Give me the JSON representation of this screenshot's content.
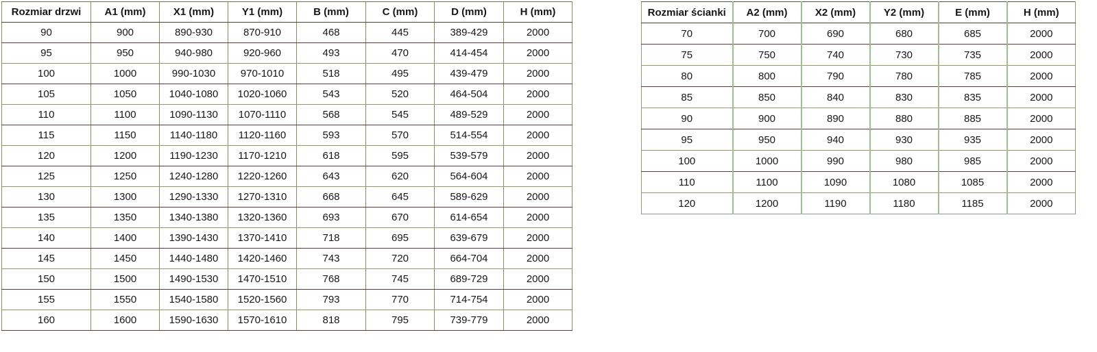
{
  "door_table": {
    "headers": [
      "Rozmiar drzwi",
      "A1 (mm)",
      "X1 (mm)",
      "Y1 (mm)",
      "B (mm)",
      "C (mm)",
      "D (mm)",
      "H (mm)"
    ],
    "rows": [
      [
        "90",
        "900",
        "890-930",
        "870-910",
        "468",
        "445",
        "389-429",
        "2000"
      ],
      [
        "95",
        "950",
        "940-980",
        "920-960",
        "493",
        "470",
        "414-454",
        "2000"
      ],
      [
        "100",
        "1000",
        "990-1030",
        "970-1010",
        "518",
        "495",
        "439-479",
        "2000"
      ],
      [
        "105",
        "1050",
        "1040-1080",
        "1020-1060",
        "543",
        "520",
        "464-504",
        "2000"
      ],
      [
        "110",
        "1100",
        "1090-1130",
        "1070-1110",
        "568",
        "545",
        "489-529",
        "2000"
      ],
      [
        "115",
        "1150",
        "1140-1180",
        "1120-1160",
        "593",
        "570",
        "514-554",
        "2000"
      ],
      [
        "120",
        "1200",
        "1190-1230",
        "1170-1210",
        "618",
        "595",
        "539-579",
        "2000"
      ],
      [
        "125",
        "1250",
        "1240-1280",
        "1220-1260",
        "643",
        "620",
        "564-604",
        "2000"
      ],
      [
        "130",
        "1300",
        "1290-1330",
        "1270-1310",
        "668",
        "645",
        "589-629",
        "2000"
      ],
      [
        "135",
        "1350",
        "1340-1380",
        "1320-1360",
        "693",
        "670",
        "614-654",
        "2000"
      ],
      [
        "140",
        "1400",
        "1390-1430",
        "1370-1410",
        "718",
        "695",
        "639-679",
        "2000"
      ],
      [
        "145",
        "1450",
        "1440-1480",
        "1420-1460",
        "743",
        "720",
        "664-704",
        "2000"
      ],
      [
        "150",
        "1500",
        "1490-1530",
        "1470-1510",
        "768",
        "745",
        "689-729",
        "2000"
      ],
      [
        "155",
        "1550",
        "1540-1580",
        "1520-1560",
        "793",
        "770",
        "714-754",
        "2000"
      ],
      [
        "160",
        "1600",
        "1590-1630",
        "1570-1610",
        "818",
        "795",
        "739-779",
        "2000"
      ]
    ],
    "rows_note_last": [
      "160",
      "1600",
      "1590-1630",
      "1570-1610",
      "818",
      "795",
      "739-779",
      "2000"
    ]
  },
  "wall_table": {
    "headers": [
      "Rozmiar ścianki",
      "A2 (mm)",
      "X2 (mm)",
      "Y2 (mm)",
      "E (mm)",
      "H (mm)"
    ],
    "rows": [
      [
        "70",
        "700",
        "690",
        "680",
        "685",
        "2000"
      ],
      [
        "75",
        "750",
        "740",
        "730",
        "735",
        "2000"
      ],
      [
        "80",
        "800",
        "790",
        "780",
        "785",
        "2000"
      ],
      [
        "85",
        "850",
        "840",
        "830",
        "835",
        "2000"
      ],
      [
        "90",
        "900",
        "890",
        "880",
        "885",
        "2000"
      ],
      [
        "95",
        "950",
        "940",
        "930",
        "935",
        "2000"
      ],
      [
        "100",
        "1000",
        "990",
        "980",
        "985",
        "2000"
      ],
      [
        "110",
        "1100",
        "1090",
        "1080",
        "1085",
        "2000"
      ],
      [
        "120",
        "1200",
        "1190",
        "1180",
        "1185",
        "2000"
      ]
    ]
  },
  "colors": {
    "rule_maroon": "#5f3b36",
    "rule_olive": "#8f9b63",
    "vertical_olive": "#8b8a5e",
    "vertical_sage": "#9dbd92",
    "text": "#161616",
    "background": "#ffffff"
  }
}
